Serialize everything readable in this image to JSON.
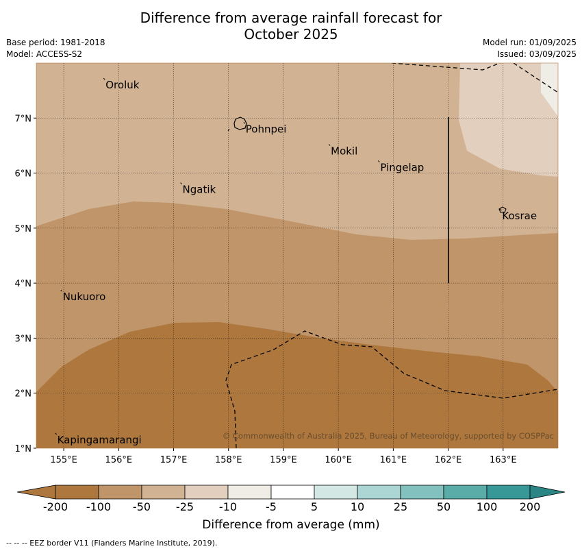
{
  "title_line1": "Difference from average rainfall forecast for",
  "title_line2": "October 2025",
  "base_period": "Base period: 1981-2018",
  "model": "Model: ACCESS-S2",
  "model_run": "Model run: 01/09/2025",
  "issued": "Issued: 03/09/2025",
  "copyright": "© Commonwealth of Australia 2025, Bureau of Meteorology, supported by COSPPac",
  "footer": "--  --  -- EEZ border V11 (Flanders Marine Institute, 2019).",
  "colorbar": {
    "title": "Difference from average (mm)",
    "labels": [
      "-200",
      "-100",
      "-50",
      "-25",
      "-10",
      "-5",
      "5",
      "10",
      "25",
      "50",
      "100",
      "200"
    ],
    "colors": [
      "#ad773e",
      "#c09569",
      "#d1b293",
      "#e3cfbe",
      "#f0ece6",
      "#ffffff",
      "#d3e8e5",
      "#acd6d4",
      "#82c1be",
      "#5aaca8",
      "#379897",
      "#2a8584"
    ]
  },
  "axes": {
    "lon_ticks": [
      "155°E",
      "156°E",
      "157°E",
      "158°E",
      "159°E",
      "160°E",
      "161°E",
      "162°E",
      "163°E"
    ],
    "lat_ticks": [
      "7°N",
      "6°N",
      "5°N",
      "4°N",
      "3°N",
      "2°N",
      "1°N"
    ],
    "lon_values": [
      155,
      156,
      157,
      158,
      159,
      160,
      161,
      162,
      163
    ],
    "lat_values": [
      7,
      6,
      5,
      4,
      3,
      2,
      1
    ],
    "lon_range": [
      154.5,
      164.0
    ],
    "lat_range": [
      1.0,
      8.0
    ]
  },
  "places": [
    {
      "name": "Oroluk",
      "lon": 155.75,
      "lat": 7.7
    },
    {
      "name": "Pohnpei",
      "lon": 158.3,
      "lat": 6.9
    },
    {
      "name": "Mokil",
      "lon": 159.85,
      "lat": 6.5
    },
    {
      "name": "Pingelap",
      "lon": 160.75,
      "lat": 6.2
    },
    {
      "name": "Ngatik",
      "lon": 157.15,
      "lat": 5.8
    },
    {
      "name": "Kosrae",
      "lon": 162.97,
      "lat": 5.32
    },
    {
      "name": "Nukuoro",
      "lon": 154.97,
      "lat": 3.85
    },
    {
      "name": "Kapingamarangi",
      "lon": 154.87,
      "lat": 1.25
    }
  ]
}
